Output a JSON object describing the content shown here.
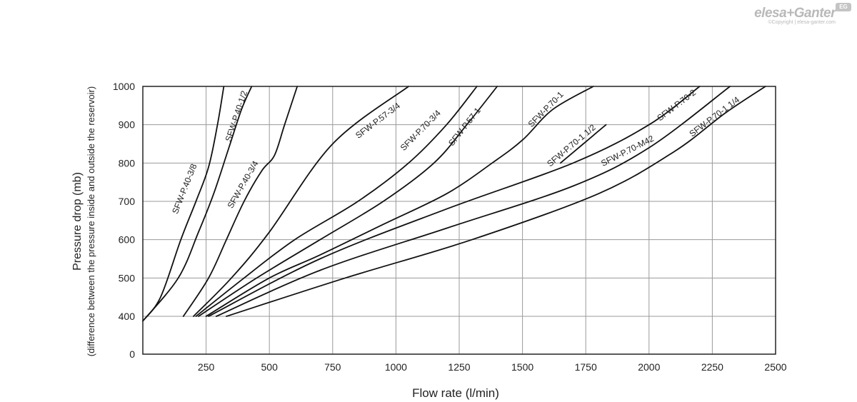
{
  "brand": {
    "name": "elesa+Ganter",
    "copyright": "©Copyright | elesa-ganter.com",
    "badge": "EG"
  },
  "chart_data": {
    "type": "line",
    "title": "",
    "xlabel": "Flow rate (l/min)",
    "ylabel": "Pressure drop (mb)",
    "ylabel_sub": "(difference between the pressure inside and outside the reservoir)",
    "xlim": [
      0,
      2500
    ],
    "x_ticks": [
      250,
      500,
      750,
      1000,
      1250,
      1500,
      1750,
      2000,
      2250,
      2500
    ],
    "y_ticks": [
      0,
      400,
      500,
      600,
      700,
      800,
      900,
      1000
    ],
    "y_scale_note": "broken axis: 0 then 400-1000",
    "grid": true,
    "line_color": "#111111",
    "grid_color": "#9a9a9a",
    "series": [
      {
        "name": "SFW-P.40-3/8",
        "points": [
          [
            0,
            350
          ],
          [
            70,
            450
          ],
          [
            150,
            600
          ],
          [
            210,
            700
          ],
          [
            260,
            790
          ],
          [
            295,
            900
          ],
          [
            320,
            1000
          ]
        ]
      },
      {
        "name": "SFW-P.40-1/2",
        "points": [
          [
            0,
            350
          ],
          [
            140,
            500
          ],
          [
            220,
            620
          ],
          [
            280,
            720
          ],
          [
            340,
            840
          ],
          [
            390,
            940
          ],
          [
            430,
            1000
          ]
        ]
      },
      {
        "name": "SFW-P.40-3/4",
        "points": [
          [
            160,
            400
          ],
          [
            260,
            500
          ],
          [
            330,
            600
          ],
          [
            400,
            700
          ],
          [
            470,
            780
          ],
          [
            520,
            820
          ],
          [
            560,
            900
          ],
          [
            610,
            1000
          ]
        ]
      },
      {
        "name": "SFW-P.57-3/4",
        "points": [
          [
            200,
            400
          ],
          [
            350,
            500
          ],
          [
            500,
            620
          ],
          [
            750,
            850
          ],
          [
            1050,
            1000
          ]
        ]
      },
      {
        "name": "SFW-P.70-3/4",
        "points": [
          [
            210,
            400
          ],
          [
            400,
            500
          ],
          [
            600,
            600
          ],
          [
            850,
            700
          ],
          [
            1050,
            800
          ],
          [
            1200,
            900
          ],
          [
            1320,
            1000
          ]
        ]
      },
      {
        "name": "SFW-P.57-1",
        "points": [
          [
            220,
            400
          ],
          [
            450,
            500
          ],
          [
            700,
            600
          ],
          [
            950,
            700
          ],
          [
            1150,
            800
          ],
          [
            1280,
            900
          ],
          [
            1400,
            1000
          ]
        ]
      },
      {
        "name": "SFW-P.70-1",
        "points": [
          [
            250,
            400
          ],
          [
            500,
            500
          ],
          [
            700,
            560
          ],
          [
            950,
            640
          ],
          [
            1200,
            720
          ],
          [
            1380,
            800
          ],
          [
            1500,
            860
          ],
          [
            1620,
            940
          ],
          [
            1780,
            1000
          ]
        ]
      },
      {
        "name": "SFW-P.70-1 1/2",
        "points": [
          [
            1650,
            800
          ],
          [
            1740,
            850
          ],
          [
            1830,
            900
          ]
        ]
      },
      {
        "name": "SFW-P.70-M42",
        "points": [
          [
            260,
            400
          ],
          [
            700,
            550
          ],
          [
            1200,
            680
          ],
          [
            1700,
            800
          ],
          [
            2000,
            900
          ],
          [
            2200,
            1000
          ]
        ]
      },
      {
        "name": "SFW-P.70-2",
        "points": [
          [
            290,
            400
          ],
          [
            700,
            520
          ],
          [
            1200,
            630
          ],
          [
            1700,
            740
          ],
          [
            2000,
            840
          ],
          [
            2320,
            1000
          ]
        ]
      },
      {
        "name": "SFW-P.70-1 1/4",
        "points": [
          [
            330,
            400
          ],
          [
            800,
            500
          ],
          [
            1300,
            600
          ],
          [
            1800,
            720
          ],
          [
            2100,
            830
          ],
          [
            2300,
            930
          ],
          [
            2460,
            1000
          ]
        ]
      }
    ],
    "labels": [
      {
        "series": "SFW-P.40-3/8",
        "text": "SFW-P.40-3/8",
        "x": 175,
        "y": 730
      },
      {
        "series": "SFW-P.40-1/2",
        "text": "SFW-P.40-1/2",
        "x": 380,
        "y": 920
      },
      {
        "series": "SFW-P.40-3/4",
        "text": "SFW-P.40-3/4",
        "x": 405,
        "y": 740
      },
      {
        "series": "SFW-P.57-3/4",
        "text": "SFW-P.57-3/4",
        "x": 935,
        "y": 905
      },
      {
        "series": "SFW-P.70-3/4",
        "text": "SFW-P.70-3/4",
        "x": 1105,
        "y": 880
      },
      {
        "series": "SFW-P.57-1",
        "text": "SFW-P.57-1",
        "x": 1280,
        "y": 890
      },
      {
        "series": "SFW-P.70-1",
        "text": "SFW-P.70-1",
        "x": 1600,
        "y": 935
      },
      {
        "series": "SFW-P.70-1 1/2",
        "text": "SFW-P.70-1 1/2",
        "x": 1700,
        "y": 840
      },
      {
        "series": "SFW-P.70-M42",
        "text": "SFW-P.70-M42",
        "x": 1920,
        "y": 825
      },
      {
        "series": "SFW-P.70-2",
        "text": "SFW-P.70-2",
        "x": 2115,
        "y": 945
      },
      {
        "series": "SFW-P.70-1 1/4",
        "text": "SFW-P.70-1 1/4",
        "x": 2265,
        "y": 915
      }
    ]
  }
}
